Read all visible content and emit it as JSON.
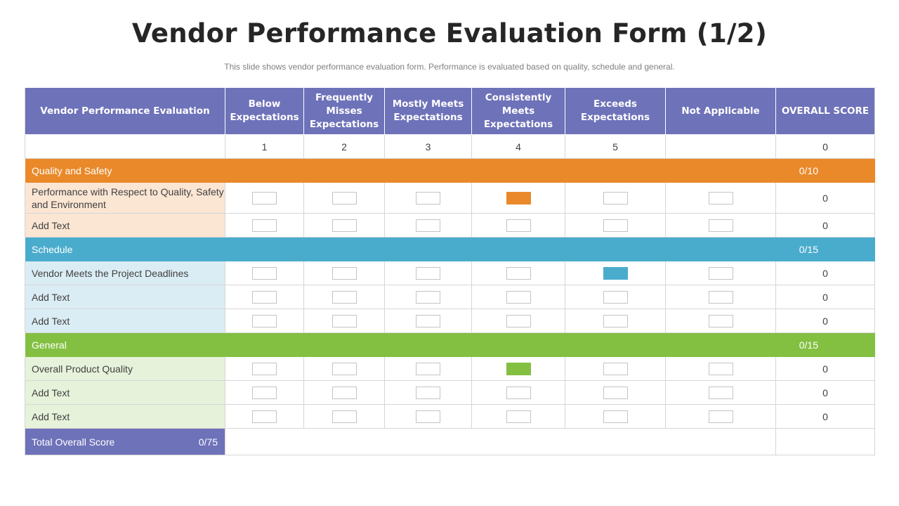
{
  "title": "Vendor Performance Evaluation Form (1/2)",
  "subtitle": "This slide shows vendor performance  evaluation form. Performance  is evaluated  based on quality, schedule and general.",
  "colors": {
    "header": "#6e72b9",
    "quality": "#e9892a",
    "schedule": "#4aaccc",
    "general": "#83c042"
  },
  "headers": {
    "category": "Vendor Performance Evaluation",
    "below": "Below Expectations",
    "frequently": "Frequently Misses Expectations",
    "mostly": "Mostly Meets Expectations",
    "consistently": "Consistently Meets Expectations",
    "exceeds": "Exceeds Expectations",
    "na": "Not Applicable",
    "overall": "OVERALL SCORE"
  },
  "scale": {
    "s1": "1",
    "s2": "2",
    "s3": "3",
    "s4": "4",
    "s5": "5",
    "overall": "0"
  },
  "sections": {
    "quality": {
      "name": "Quality and Safety",
      "score": "0/10",
      "rows": [
        {
          "label": "Performance with Respect to Quality, Safety and Environment",
          "score": "0",
          "selected": "4"
        },
        {
          "label": "Add Text",
          "score": "0",
          "selected": ""
        }
      ]
    },
    "schedule": {
      "name": "Schedule",
      "score": "0/15",
      "rows": [
        {
          "label": "Vendor Meets the Project Deadlines",
          "score": "0",
          "selected": "5"
        },
        {
          "label": "Add Text",
          "score": "0",
          "selected": ""
        },
        {
          "label": "Add Text",
          "score": "0",
          "selected": ""
        }
      ]
    },
    "general": {
      "name": "General",
      "score": "0/15",
      "rows": [
        {
          "label": "Overall Product Quality",
          "score": "0",
          "selected": "4"
        },
        {
          "label": "Add Text",
          "score": "0",
          "selected": ""
        },
        {
          "label": "Add Text",
          "score": "0",
          "selected": ""
        }
      ]
    }
  },
  "total": {
    "label": "Total Overall Score",
    "value": "0/75"
  }
}
